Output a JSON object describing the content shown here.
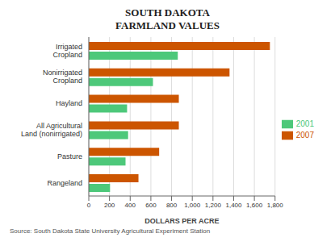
{
  "chart_data": {
    "type": "bar",
    "orientation": "horizontal",
    "title": "SOUTH DAKOTA",
    "subtitle": "FARMLAND VALUES",
    "categories": [
      "Irrigated\nCropland",
      "Nonirrigated\nCropland",
      "Hayland",
      "All Agricultural\nLand (nonirrigated)",
      "Pasture",
      "Rangeland"
    ],
    "series": [
      {
        "name": "2007",
        "color": "#CC5500",
        "values": [
          1750,
          1360,
          870,
          870,
          680,
          480
        ]
      },
      {
        "name": "2001",
        "color": "#4DC87A",
        "values": [
          860,
          620,
          370,
          380,
          355,
          205
        ]
      }
    ],
    "xlabel": "DOLLARS PER ACRE",
    "xlim": [
      0,
      1800
    ],
    "xticks": [
      0,
      200,
      400,
      600,
      800,
      {
        "value": 1000,
        "label": "1,000"
      },
      {
        "value": 1200,
        "label": "1,200"
      },
      {
        "value": 1400,
        "label": "1,400"
      },
      {
        "value": 1600,
        "label": "1,600"
      },
      {
        "value": 1800,
        "label": "1,800"
      }
    ],
    "grid": true,
    "legend": "right",
    "annotations": [
      "Source: South Dakota State University Agricultural Experiment Station"
    ]
  }
}
